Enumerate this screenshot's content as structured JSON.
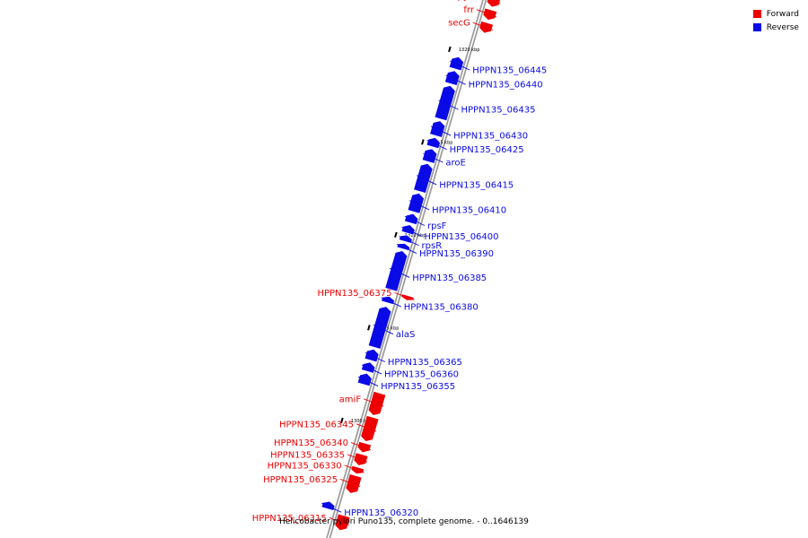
{
  "legend": {
    "forward_label": "Forward",
    "reverse_label": "Reverse",
    "forward_color": "#ee0000",
    "reverse_color": "#0a0ae6"
  },
  "caption": "Helicobacter pylori Puno135, complete genome. - 0..1646139",
  "genes": [
    {
      "name": "pyrE",
      "strand": "forward",
      "start_kbp": 1322.7,
      "end_kbp": 1323.3
    },
    {
      "name": "frr",
      "strand": "forward",
      "start_kbp": 1322.0,
      "end_kbp": 1322.55
    },
    {
      "name": "secG",
      "strand": "forward",
      "start_kbp": 1321.3,
      "end_kbp": 1321.85
    },
    {
      "name": "HPPN135_06445",
      "strand": "reverse",
      "start_kbp": 1319.1,
      "end_kbp": 1319.75
    },
    {
      "name": "HPPN135_06440",
      "strand": "reverse",
      "start_kbp": 1318.3,
      "end_kbp": 1319.0
    },
    {
      "name": "HPPN135_06435",
      "strand": "reverse",
      "start_kbp": 1316.4,
      "end_kbp": 1318.2
    },
    {
      "name": "HPPN135_06430",
      "strand": "reverse",
      "start_kbp": 1315.5,
      "end_kbp": 1316.3
    },
    {
      "name": "HPPN135_06425",
      "strand": "reverse",
      "start_kbp": 1314.9,
      "end_kbp": 1315.4
    },
    {
      "name": "aroE",
      "strand": "reverse",
      "start_kbp": 1314.1,
      "end_kbp": 1314.8
    },
    {
      "name": "HPPN135_06415",
      "strand": "reverse",
      "start_kbp": 1312.5,
      "end_kbp": 1314.0
    },
    {
      "name": "HPPN135_06410",
      "strand": "reverse",
      "start_kbp": 1311.4,
      "end_kbp": 1312.4
    },
    {
      "name": "rpsF",
      "strand": "reverse",
      "start_kbp": 1310.8,
      "end_kbp": 1311.3
    },
    {
      "name": "HPPN135_06400",
      "strand": "reverse",
      "start_kbp": 1310.25,
      "end_kbp": 1310.7
    },
    {
      "name": "rpsR",
      "strand": "reverse",
      "start_kbp": 1309.8,
      "end_kbp": 1310.15
    },
    {
      "name": "HPPN135_06390",
      "strand": "reverse",
      "start_kbp": 1309.4,
      "end_kbp": 1309.7
    },
    {
      "name": "HPPN135_06385",
      "strand": "reverse",
      "start_kbp": 1307.2,
      "end_kbp": 1309.3
    },
    {
      "name": "HPPN135_06375",
      "strand": "forward",
      "start_kbp": 1306.9,
      "end_kbp": 1307.15
    },
    {
      "name": "HPPN135_06380",
      "strand": "reverse",
      "start_kbp": 1306.5,
      "end_kbp": 1306.85
    },
    {
      "name": "alaS",
      "strand": "reverse",
      "start_kbp": 1304.1,
      "end_kbp": 1306.3
    },
    {
      "name": "HPPN135_06365",
      "strand": "reverse",
      "start_kbp": 1303.4,
      "end_kbp": 1304.0
    },
    {
      "name": "HPPN135_06360",
      "strand": "reverse",
      "start_kbp": 1302.8,
      "end_kbp": 1303.3
    },
    {
      "name": "HPPN135_06355",
      "strand": "reverse",
      "start_kbp": 1302.1,
      "end_kbp": 1302.7
    },
    {
      "name": "amiF",
      "strand": "forward",
      "start_kbp": 1300.7,
      "end_kbp": 1301.9
    },
    {
      "name": "HPPN135_06345",
      "strand": "forward",
      "start_kbp": 1299.3,
      "end_kbp": 1300.6
    },
    {
      "name": "HPPN135_06340",
      "strand": "forward",
      "start_kbp": 1298.7,
      "end_kbp": 1299.2
    },
    {
      "name": "HPPN135_06335",
      "strand": "forward",
      "start_kbp": 1298.0,
      "end_kbp": 1298.6
    },
    {
      "name": "HPPN135_06330",
      "strand": "forward",
      "start_kbp": 1297.55,
      "end_kbp": 1297.9
    },
    {
      "name": "HPPN135_06325",
      "strand": "forward",
      "start_kbp": 1296.5,
      "end_kbp": 1297.45
    },
    {
      "name": "HPPN135_06320",
      "strand": "reverse",
      "start_kbp": 1295.4,
      "end_kbp": 1295.8
    },
    {
      "name": "HPPN135_06315",
      "strand": "forward",
      "start_kbp": 1294.5,
      "end_kbp": 1295.3
    }
  ],
  "ticks": [
    {
      "kbp": 1320,
      "label": "1320 kbp"
    },
    {
      "kbp": 1315,
      "label": "1315 kbp"
    },
    {
      "kbp": 1310,
      "label": "1310 kbp"
    },
    {
      "kbp": 1305,
      "label": "1305 kbp"
    },
    {
      "kbp": 1300,
      "label": "1300 kbp"
    }
  ]
}
